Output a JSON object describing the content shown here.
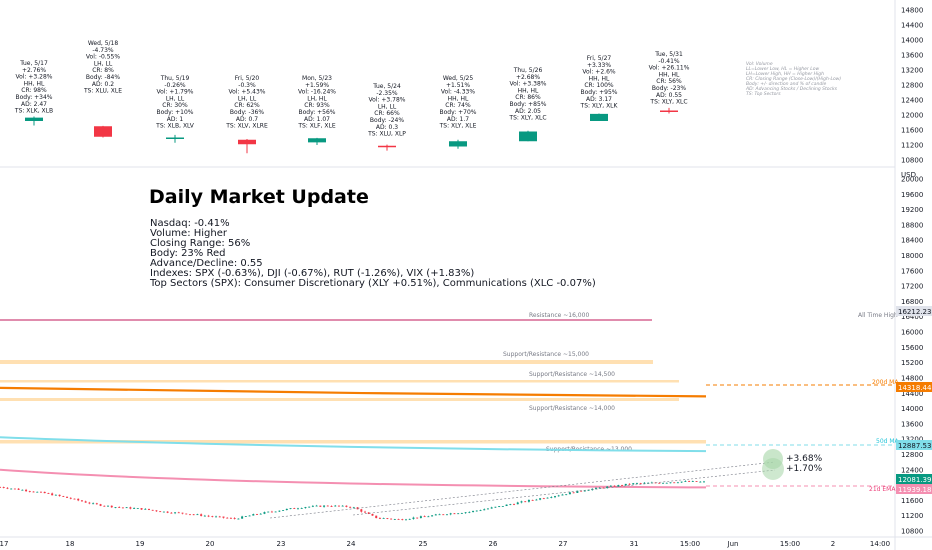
{
  "colors": {
    "up": "#089981",
    "down": "#f23645",
    "resistance": "#c2185b",
    "support": "#ffcc80",
    "ma200": "#f57c00",
    "ma50": "#80deea",
    "ema21": "#f48fb1",
    "lastPrice": "#089981"
  },
  "legend_lines": [
    "Vol: Volume",
    "LL=Lower Low, HL = Higher Low",
    "LH=Lower High, HH = Higher High",
    "CR: Closing Range (Close-Low)/(High-Low)",
    "Body: +/- direction and % of candle",
    "AD: Advancing Stocks / Declining Stocks",
    "TS: Top Sectors"
  ],
  "info": {
    "title": "Daily Market Update",
    "lines": [
      "Nasdaq: -0.41%",
      "Volume: Higher",
      "Closing Range: 56%",
      "Body: 23% Red",
      "Advance/Decline: 0.55",
      "Indexes: SPX (-0.63%), DJI (-0.67%), RUT (-1.26%), VIX (+1.83%)",
      "Top Sectors (SPX): Consumer Discretionary (XLY +0.51%), Communications (XLC -0.07%)"
    ]
  },
  "projection": {
    "up": "+3.68%",
    "down": "+1.70%"
  },
  "levels": {
    "resistance_16000": "Resistance ~16,000",
    "sr_15000": "Support/Resistance ~15,000",
    "sr_14500": "Support/Resistance ~14,500",
    "sr_14000": "Support/Resistance ~14,000",
    "sr_13000": "Support/Resistance ~13,000",
    "ath": "All Time High",
    "ma200_label": "200d MA",
    "ma50_label": "50d MA",
    "ema21_label": "21d EMA"
  },
  "price_tags": {
    "ath": "16212.23",
    "ma200": "14318.44",
    "ma50": "12887.53",
    "last": "12081.39",
    "ema21": "11939.18"
  },
  "chart_data": [
    {
      "type": "candlestick",
      "title": "",
      "yaxis": {
        "ticks": [
          10800,
          11200,
          11600,
          12000,
          12400,
          12800,
          13200,
          13600,
          14000,
          14400,
          14800
        ],
        "range": [
          10600,
          14900
        ],
        "unit": ""
      },
      "days": [
        {
          "label": "Tue, 5/17",
          "lines": [
            "+2.76%",
            "Vol: +3.28%",
            "HH, HL",
            "CR: 98%",
            "Body: +34%",
            "AD: 2.47",
            "TS: XLK, XLB"
          ],
          "open": 11840,
          "high": 11960,
          "low": 11720,
          "close": 11930
        },
        {
          "label": "Wed, 5/18",
          "lines": [
            "-4.73%",
            "Vol: -0.55%",
            "LH, LL",
            "CR: 8%",
            "Body: -84%",
            "AD: 0.2",
            "TS: XLU, XLE"
          ],
          "open": 11700,
          "high": 11710,
          "low": 11400,
          "close": 11420
        },
        {
          "label": "Thu, 5/19",
          "lines": [
            "-0.26%",
            "Vol: +1.79%",
            "LH, LL",
            "CR: 30%",
            "Body: +10%",
            "AD: 1",
            "TS: XLB, XLV"
          ],
          "open": 11390,
          "high": 11470,
          "low": 11260,
          "close": 11400
        },
        {
          "label": "Fri, 5/20",
          "lines": [
            "-0.3%",
            "Vol: +5.43%",
            "LH, LL",
            "CR: 62%",
            "Body: -36%",
            "AD: 0.7",
            "TS: XLV, XLRE"
          ],
          "open": 11340,
          "high": 11360,
          "low": 10980,
          "close": 11220
        },
        {
          "label": "Mon, 5/23",
          "lines": [
            "+1.59%",
            "Vol: -16.24%",
            "LH, HL",
            "CR: 93%",
            "Body: +56%",
            "AD: 1.07",
            "TS: XLF, XLE"
          ],
          "open": 11270,
          "high": 11390,
          "low": 11200,
          "close": 11380
        },
        {
          "label": "Tue, 5/24",
          "lines": [
            "-2.35%",
            "Vol: +3.78%",
            "LH, LL",
            "CR: 66%",
            "Body: -24%",
            "AD: 0.3",
            "TS: XLU, XLP"
          ],
          "open": 11180,
          "high": 11210,
          "low": 11050,
          "close": 11150
        },
        {
          "label": "Wed, 5/25",
          "lines": [
            "+1.51%",
            "Vol: -4.33%",
            "HH, HL",
            "CR: 74%",
            "Body: +70%",
            "AD: 1.7",
            "TS: XLY, XLE"
          ],
          "open": 11160,
          "high": 11340,
          "low": 11100,
          "close": 11300
        },
        {
          "label": "Thu, 5/26",
          "lines": [
            "+2.68%",
            "Vol: +3.38%",
            "HH, HL",
            "CR: 86%",
            "Body: +85%",
            "AD: 2.05",
            "TS: XLY, XLC"
          ],
          "open": 11300,
          "high": 11580,
          "low": 11300,
          "close": 11560
        },
        {
          "label": "Fri, 5/27",
          "lines": [
            "+3.33%",
            "Vol: +2.6%",
            "HH, HL",
            "CR: 100%",
            "Body: +95%",
            "AD: 3.17",
            "TS: XLY, XLK"
          ],
          "open": 11840,
          "high": 12040,
          "low": 11840,
          "close": 12030
        },
        {
          "label": "Tue, 5/31",
          "lines": [
            "-0.41%",
            "Vol: +26.11%",
            "HH, HL",
            "CR: 56%",
            "Body: -23%",
            "AD: 0.55",
            "TS: XLY, XLC"
          ],
          "open": 12120,
          "high": 12190,
          "low": 12040,
          "close": 12090
        }
      ]
    },
    {
      "type": "line",
      "title": "",
      "currency": "USD",
      "yaxis": {
        "ticks": [
          10800,
          11200,
          11600,
          12000,
          12400,
          12800,
          13200,
          13600,
          14000,
          14400,
          14800,
          15200,
          15600,
          16000,
          16400,
          16800,
          17200,
          17600,
          18000,
          18400,
          18800,
          19200,
          19600,
          20000
        ],
        "range": [
          10600,
          20300
        ]
      },
      "xaxis": {
        "ticks": [
          "17",
          "18",
          "19",
          "20",
          "23",
          "24",
          "25",
          "26",
          "27",
          "31",
          "15:00",
          "Jun",
          "15:00",
          "2",
          "14:00"
        ]
      },
      "levels": [
        16000,
        15000,
        14500,
        14000,
        13000
      ],
      "all_time_high": 16212.23,
      "ma200": {
        "start": 14540,
        "end": 14318.44
      },
      "ma50": {
        "start": 13250,
        "end": 12887.53
      },
      "ema21": {
        "start": 12400,
        "end": 11939.18
      },
      "price": [
        11950,
        11870,
        11780,
        11650,
        11500,
        11420,
        11380,
        11300,
        11250,
        11180,
        11120,
        11250,
        11350,
        11430,
        11460,
        11430,
        11150,
        11100,
        11170,
        11250,
        11300,
        11410,
        11530,
        11650,
        11760,
        11880,
        11960,
        12040,
        12060,
        12090,
        12081.39
      ]
    }
  ]
}
